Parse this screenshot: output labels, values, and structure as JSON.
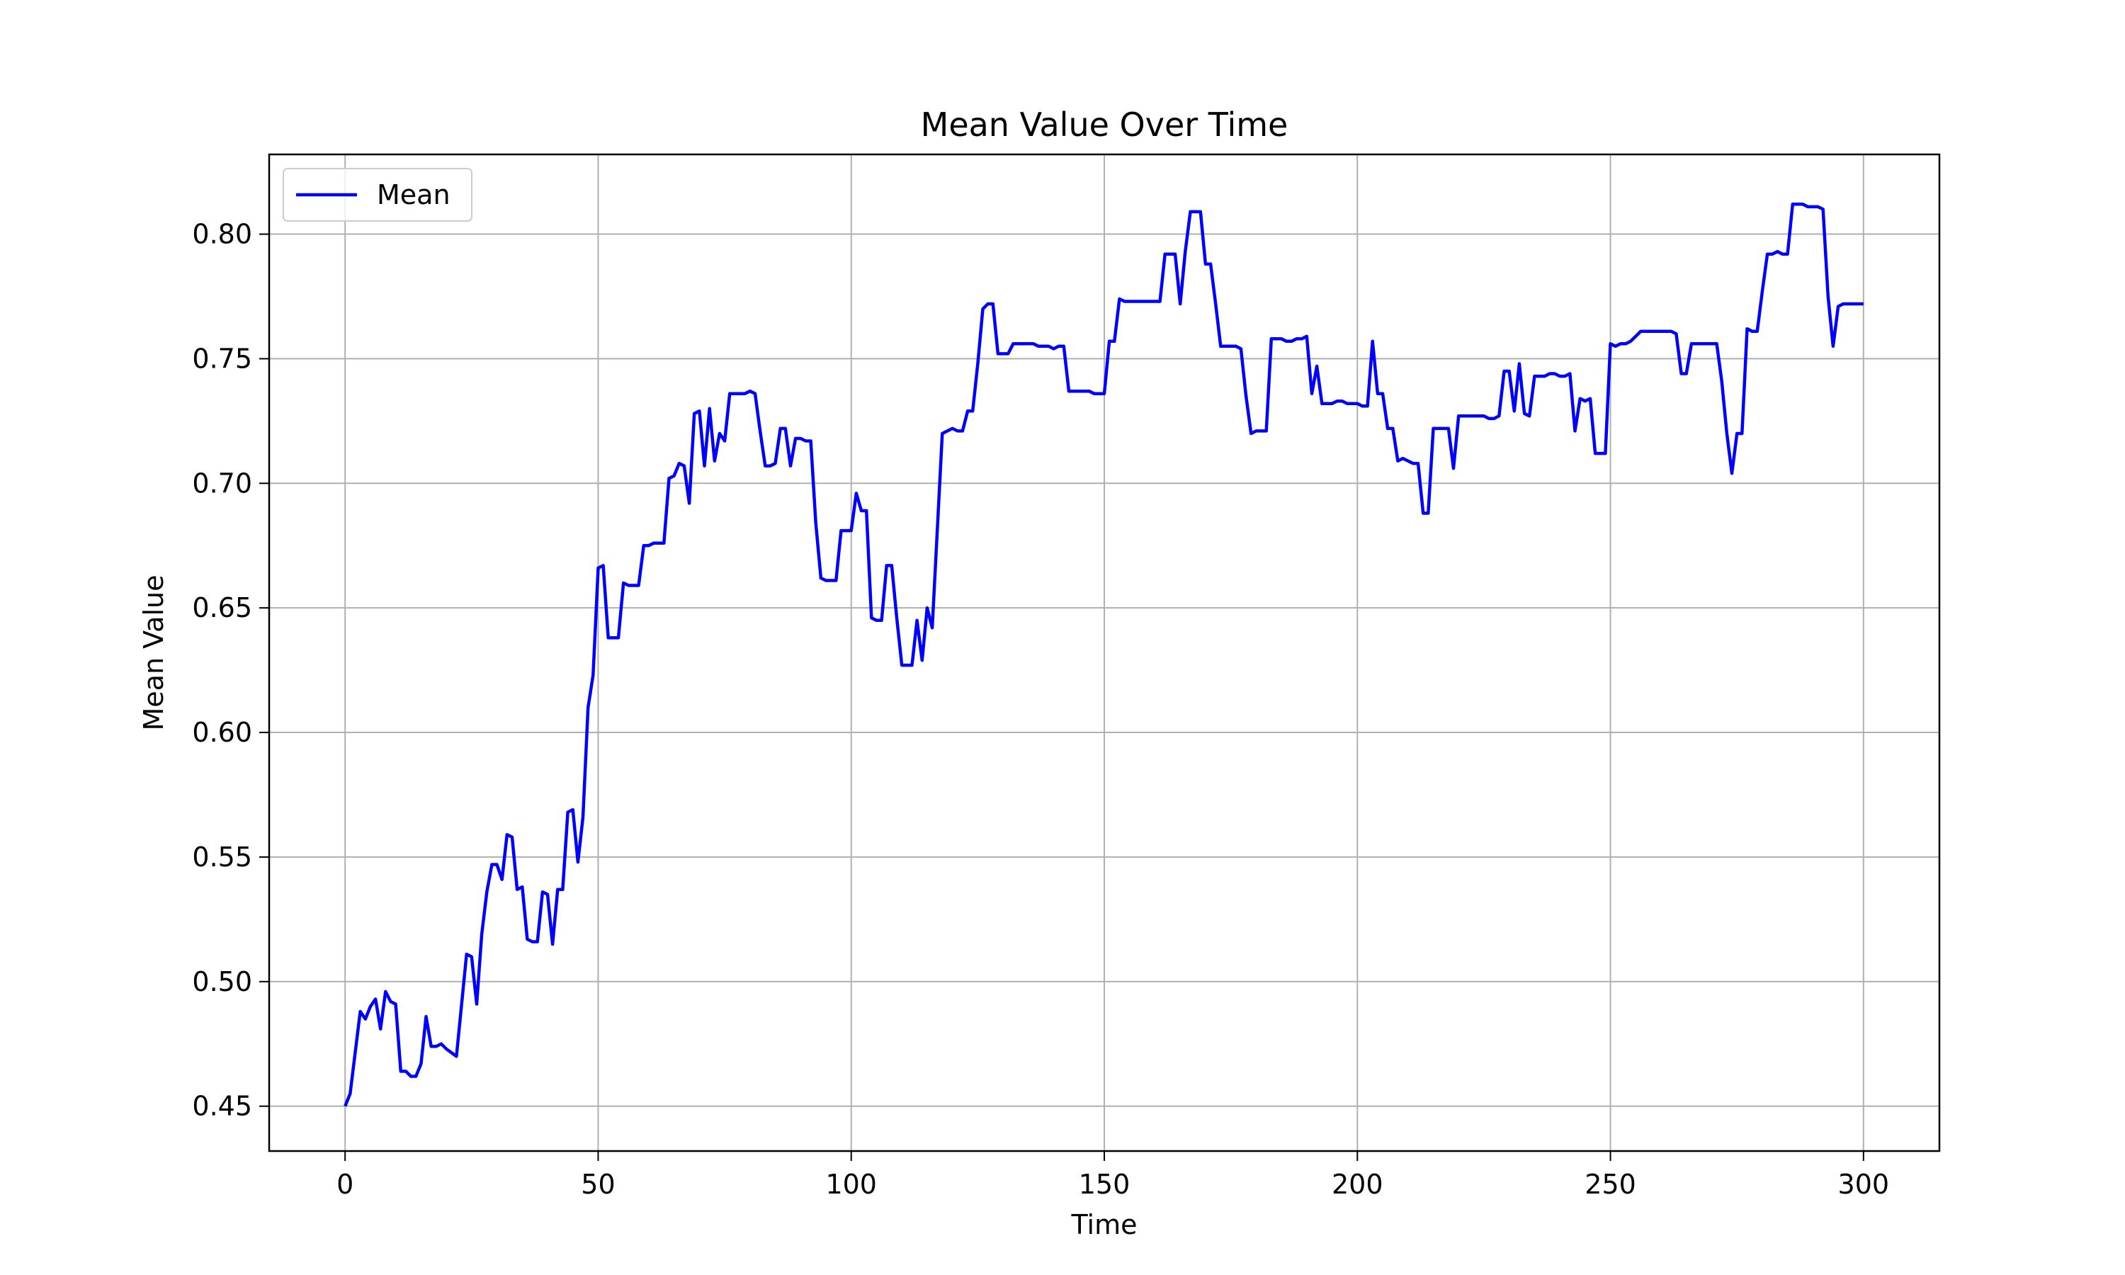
{
  "chart_data": {
    "type": "line",
    "title": "Mean Value Over Time",
    "xlabel": "Time",
    "ylabel": "Mean Value",
    "xlim": [
      -15,
      315
    ],
    "ylim": [
      0.432,
      0.832
    ],
    "xticks": [
      0,
      50,
      100,
      150,
      200,
      250,
      300
    ],
    "yticks": [
      0.45,
      0.5,
      0.55,
      0.6,
      0.65,
      0.7,
      0.75,
      0.8
    ],
    "grid": true,
    "legend_position": "top-left",
    "series": [
      {
        "name": "Mean",
        "color": "#0000ff",
        "points": [
          [
            0,
            0.45
          ],
          [
            1,
            0.455
          ],
          [
            3,
            0.488
          ],
          [
            4,
            0.485
          ],
          [
            5,
            0.49
          ],
          [
            6,
            0.493
          ],
          [
            7,
            0.481
          ],
          [
            8,
            0.496
          ],
          [
            9,
            0.492
          ],
          [
            10,
            0.491
          ],
          [
            11,
            0.464
          ],
          [
            12,
            0.464
          ],
          [
            13,
            0.462
          ],
          [
            14,
            0.462
          ],
          [
            15,
            0.467
          ],
          [
            16,
            0.486
          ],
          [
            17,
            0.474
          ],
          [
            18,
            0.474
          ],
          [
            19,
            0.475
          ],
          [
            20,
            0.473
          ],
          [
            22,
            0.47
          ],
          [
            24,
            0.511
          ],
          [
            25,
            0.51
          ],
          [
            26,
            0.491
          ],
          [
            27,
            0.519
          ],
          [
            28,
            0.536
          ],
          [
            29,
            0.547
          ],
          [
            30,
            0.547
          ],
          [
            31,
            0.541
          ],
          [
            32,
            0.559
          ],
          [
            33,
            0.558
          ],
          [
            34,
            0.537
          ],
          [
            35,
            0.538
          ],
          [
            36,
            0.517
          ],
          [
            37,
            0.516
          ],
          [
            38,
            0.516
          ],
          [
            39,
            0.536
          ],
          [
            40,
            0.535
          ],
          [
            41,
            0.515
          ],
          [
            42,
            0.537
          ],
          [
            43,
            0.537
          ],
          [
            44,
            0.568
          ],
          [
            45,
            0.569
          ],
          [
            46,
            0.548
          ],
          [
            47,
            0.566
          ],
          [
            48,
            0.61
          ],
          [
            49,
            0.623
          ],
          [
            50,
            0.666
          ],
          [
            51,
            0.667
          ],
          [
            52,
            0.638
          ],
          [
            53,
            0.638
          ],
          [
            54,
            0.638
          ],
          [
            55,
            0.66
          ],
          [
            56,
            0.659
          ],
          [
            57,
            0.659
          ],
          [
            58,
            0.659
          ],
          [
            59,
            0.675
          ],
          [
            60,
            0.675
          ],
          [
            61,
            0.676
          ],
          [
            62,
            0.676
          ],
          [
            63,
            0.676
          ],
          [
            64,
            0.702
          ],
          [
            65,
            0.703
          ],
          [
            66,
            0.708
          ],
          [
            67,
            0.707
          ],
          [
            68,
            0.692
          ],
          [
            69,
            0.728
          ],
          [
            70,
            0.729
          ],
          [
            71,
            0.707
          ],
          [
            72,
            0.73
          ],
          [
            73,
            0.709
          ],
          [
            74,
            0.72
          ],
          [
            75,
            0.717
          ],
          [
            76,
            0.736
          ],
          [
            77,
            0.736
          ],
          [
            78,
            0.736
          ],
          [
            79,
            0.736
          ],
          [
            80,
            0.737
          ],
          [
            81,
            0.736
          ],
          [
            82,
            0.721
          ],
          [
            83,
            0.707
          ],
          [
            84,
            0.707
          ],
          [
            85,
            0.708
          ],
          [
            86,
            0.722
          ],
          [
            87,
            0.722
          ],
          [
            88,
            0.707
          ],
          [
            89,
            0.718
          ],
          [
            90,
            0.718
          ],
          [
            91,
            0.717
          ],
          [
            92,
            0.717
          ],
          [
            93,
            0.684
          ],
          [
            94,
            0.662
          ],
          [
            95,
            0.661
          ],
          [
            96,
            0.661
          ],
          [
            97,
            0.661
          ],
          [
            98,
            0.681
          ],
          [
            99,
            0.681
          ],
          [
            100,
            0.681
          ],
          [
            101,
            0.696
          ],
          [
            102,
            0.689
          ],
          [
            103,
            0.689
          ],
          [
            104,
            0.646
          ],
          [
            105,
            0.645
          ],
          [
            106,
            0.645
          ],
          [
            107,
            0.667
          ],
          [
            108,
            0.667
          ],
          [
            109,
            0.646
          ],
          [
            110,
            0.627
          ],
          [
            111,
            0.627
          ],
          [
            112,
            0.627
          ],
          [
            113,
            0.645
          ],
          [
            114,
            0.629
          ],
          [
            115,
            0.65
          ],
          [
            116,
            0.642
          ],
          [
            117,
            0.681
          ],
          [
            118,
            0.72
          ],
          [
            119,
            0.721
          ],
          [
            120,
            0.722
          ],
          [
            121,
            0.721
          ],
          [
            122,
            0.721
          ],
          [
            123,
            0.729
          ],
          [
            124,
            0.729
          ],
          [
            125,
            0.748
          ],
          [
            126,
            0.77
          ],
          [
            127,
            0.772
          ],
          [
            128,
            0.772
          ],
          [
            129,
            0.752
          ],
          [
            130,
            0.752
          ],
          [
            131,
            0.752
          ],
          [
            132,
            0.756
          ],
          [
            133,
            0.756
          ],
          [
            134,
            0.756
          ],
          [
            135,
            0.756
          ],
          [
            136,
            0.756
          ],
          [
            137,
            0.755
          ],
          [
            138,
            0.755
          ],
          [
            139,
            0.755
          ],
          [
            140,
            0.754
          ],
          [
            141,
            0.755
          ],
          [
            142,
            0.755
          ],
          [
            143,
            0.737
          ],
          [
            144,
            0.737
          ],
          [
            145,
            0.737
          ],
          [
            146,
            0.737
          ],
          [
            147,
            0.737
          ],
          [
            148,
            0.736
          ],
          [
            149,
            0.736
          ],
          [
            150,
            0.736
          ],
          [
            151,
            0.757
          ],
          [
            152,
            0.757
          ],
          [
            153,
            0.774
          ],
          [
            154,
            0.773
          ],
          [
            155,
            0.773
          ],
          [
            156,
            0.773
          ],
          [
            157,
            0.773
          ],
          [
            158,
            0.773
          ],
          [
            159,
            0.773
          ],
          [
            160,
            0.773
          ],
          [
            161,
            0.773
          ],
          [
            162,
            0.792
          ],
          [
            163,
            0.792
          ],
          [
            164,
            0.792
          ],
          [
            165,
            0.772
          ],
          [
            166,
            0.793
          ],
          [
            167,
            0.809
          ],
          [
            168,
            0.809
          ],
          [
            169,
            0.809
          ],
          [
            170,
            0.788
          ],
          [
            171,
            0.788
          ],
          [
            172,
            0.772
          ],
          [
            173,
            0.755
          ],
          [
            174,
            0.755
          ],
          [
            175,
            0.755
          ],
          [
            176,
            0.755
          ],
          [
            177,
            0.754
          ],
          [
            178,
            0.735
          ],
          [
            179,
            0.72
          ],
          [
            180,
            0.721
          ],
          [
            181,
            0.721
          ],
          [
            182,
            0.721
          ],
          [
            183,
            0.758
          ],
          [
            184,
            0.758
          ],
          [
            185,
            0.758
          ],
          [
            186,
            0.757
          ],
          [
            187,
            0.757
          ],
          [
            188,
            0.758
          ],
          [
            189,
            0.758
          ],
          [
            190,
            0.759
          ],
          [
            191,
            0.736
          ],
          [
            192,
            0.747
          ],
          [
            193,
            0.732
          ],
          [
            194,
            0.732
          ],
          [
            195,
            0.732
          ],
          [
            196,
            0.733
          ],
          [
            197,
            0.733
          ],
          [
            198,
            0.732
          ],
          [
            199,
            0.732
          ],
          [
            200,
            0.732
          ],
          [
            201,
            0.731
          ],
          [
            202,
            0.731
          ],
          [
            203,
            0.757
          ],
          [
            204,
            0.736
          ],
          [
            205,
            0.736
          ],
          [
            206,
            0.722
          ],
          [
            207,
            0.722
          ],
          [
            208,
            0.709
          ],
          [
            209,
            0.71
          ],
          [
            210,
            0.709
          ],
          [
            211,
            0.708
          ],
          [
            212,
            0.708
          ],
          [
            213,
            0.688
          ],
          [
            214,
            0.688
          ],
          [
            215,
            0.722
          ],
          [
            216,
            0.722
          ],
          [
            217,
            0.722
          ],
          [
            218,
            0.722
          ],
          [
            219,
            0.706
          ],
          [
            220,
            0.727
          ],
          [
            221,
            0.727
          ],
          [
            222,
            0.727
          ],
          [
            223,
            0.727
          ],
          [
            224,
            0.727
          ],
          [
            225,
            0.727
          ],
          [
            226,
            0.726
          ],
          [
            227,
            0.726
          ],
          [
            228,
            0.727
          ],
          [
            229,
            0.745
          ],
          [
            230,
            0.745
          ],
          [
            231,
            0.729
          ],
          [
            232,
            0.748
          ],
          [
            233,
            0.728
          ],
          [
            234,
            0.727
          ],
          [
            235,
            0.743
          ],
          [
            236,
            0.743
          ],
          [
            237,
            0.743
          ],
          [
            238,
            0.744
          ],
          [
            239,
            0.744
          ],
          [
            240,
            0.743
          ],
          [
            241,
            0.743
          ],
          [
            242,
            0.744
          ],
          [
            243,
            0.721
          ],
          [
            244,
            0.734
          ],
          [
            245,
            0.733
          ],
          [
            246,
            0.734
          ],
          [
            247,
            0.712
          ],
          [
            248,
            0.712
          ],
          [
            249,
            0.712
          ],
          [
            250,
            0.756
          ],
          [
            251,
            0.755
          ],
          [
            252,
            0.756
          ],
          [
            253,
            0.756
          ],
          [
            254,
            0.757
          ],
          [
            255,
            0.759
          ],
          [
            256,
            0.761
          ],
          [
            257,
            0.761
          ],
          [
            258,
            0.761
          ],
          [
            259,
            0.761
          ],
          [
            260,
            0.761
          ],
          [
            261,
            0.761
          ],
          [
            262,
            0.761
          ],
          [
            263,
            0.76
          ],
          [
            264,
            0.744
          ],
          [
            265,
            0.744
          ],
          [
            266,
            0.756
          ],
          [
            267,
            0.756
          ],
          [
            268,
            0.756
          ],
          [
            269,
            0.756
          ],
          [
            270,
            0.756
          ],
          [
            271,
            0.756
          ],
          [
            272,
            0.741
          ],
          [
            273,
            0.72
          ],
          [
            274,
            0.704
          ],
          [
            275,
            0.72
          ],
          [
            276,
            0.72
          ],
          [
            277,
            0.762
          ],
          [
            278,
            0.761
          ],
          [
            279,
            0.761
          ],
          [
            280,
            0.777
          ],
          [
            281,
            0.792
          ],
          [
            282,
            0.792
          ],
          [
            283,
            0.793
          ],
          [
            284,
            0.792
          ],
          [
            285,
            0.792
          ],
          [
            286,
            0.812
          ],
          [
            287,
            0.812
          ],
          [
            288,
            0.812
          ],
          [
            289,
            0.811
          ],
          [
            290,
            0.811
          ],
          [
            291,
            0.811
          ],
          [
            292,
            0.81
          ],
          [
            293,
            0.775
          ],
          [
            294,
            0.755
          ],
          [
            295,
            0.771
          ],
          [
            296,
            0.772
          ],
          [
            297,
            0.772
          ],
          [
            298,
            0.772
          ],
          [
            299,
            0.772
          ],
          [
            300,
            0.772
          ]
        ]
      }
    ]
  }
}
